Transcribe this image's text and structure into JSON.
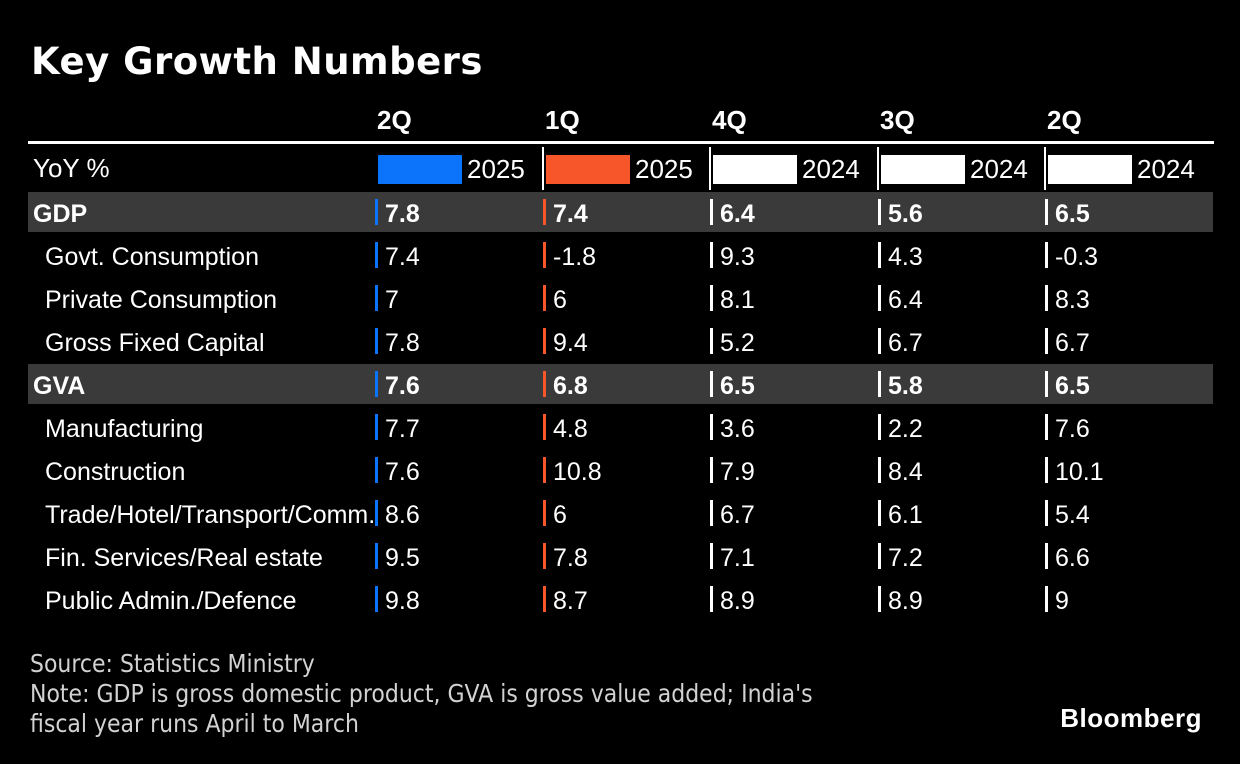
{
  "title": "Key Growth Numbers",
  "colors": {
    "background": "#000000",
    "highlight_row": "#3a3a3a",
    "series_blue": "#0c74fb",
    "series_orange": "#f6562a",
    "series_white": "#ffffff",
    "footer_text": "#d2d2d2"
  },
  "table": {
    "unit_label": "YoY %",
    "columns": [
      {
        "quarter": "2Q",
        "year": "2025",
        "swatch": "#0c74fb"
      },
      {
        "quarter": "1Q",
        "year": "2025",
        "swatch": "#f6562a"
      },
      {
        "quarter": "4Q",
        "year": "2024",
        "swatch": "#ffffff"
      },
      {
        "quarter": "3Q",
        "year": "2024",
        "swatch": "#ffffff"
      },
      {
        "quarter": "2Q",
        "year": "2024",
        "swatch": "#ffffff"
      }
    ],
    "rows": [
      {
        "label": "GDP",
        "highlight": true,
        "values": [
          "7.8",
          "7.4",
          "6.4",
          "5.6",
          "6.5"
        ]
      },
      {
        "label": "Govt. Consumption",
        "highlight": false,
        "values": [
          "7.4",
          "-1.8",
          "9.3",
          "4.3",
          "-0.3"
        ]
      },
      {
        "label": "Private Consumption",
        "highlight": false,
        "values": [
          "7",
          "6",
          "8.1",
          "6.4",
          "8.3"
        ]
      },
      {
        "label": "Gross Fixed Capital",
        "highlight": false,
        "values": [
          "7.8",
          "9.4",
          "5.2",
          "6.7",
          "6.7"
        ]
      },
      {
        "label": "GVA",
        "highlight": true,
        "values": [
          "7.6",
          "6.8",
          "6.5",
          "5.8",
          "6.5"
        ]
      },
      {
        "label": "Manufacturing",
        "highlight": false,
        "values": [
          "7.7",
          "4.8",
          "3.6",
          "2.2",
          "7.6"
        ]
      },
      {
        "label": "Construction",
        "highlight": false,
        "values": [
          "7.6",
          "10.8",
          "7.9",
          "8.4",
          "10.1"
        ]
      },
      {
        "label": "Trade/Hotel/Transport/Comm.",
        "highlight": false,
        "values": [
          "8.6",
          "6",
          "6.7",
          "6.1",
          "5.4"
        ]
      },
      {
        "label": "Fin. Services/Real estate",
        "highlight": false,
        "values": [
          "9.5",
          "7.8",
          "7.1",
          "7.2",
          "6.6"
        ]
      },
      {
        "label": "Public Admin./Defence",
        "highlight": false,
        "values": [
          "9.8",
          "8.7",
          "8.9",
          "8.9",
          "9"
        ]
      }
    ]
  },
  "footer": {
    "source": "Source: Statistics Ministry",
    "note_lines": [
      "Note: GDP is gross domestic product, GVA is gross value added; India's",
      "fiscal year runs April to March"
    ]
  },
  "logo": "Bloomberg",
  "chart_data": {
    "type": "table",
    "title": "Key Growth Numbers",
    "unit": "YoY %",
    "categories": [
      "2Q 2025",
      "1Q 2025",
      "4Q 2024",
      "3Q 2024",
      "2Q 2024"
    ],
    "category_colors": [
      "#0c74fb",
      "#f6562a",
      "#ffffff",
      "#ffffff",
      "#ffffff"
    ],
    "series": [
      {
        "name": "GDP",
        "values": [
          7.8,
          7.4,
          6.4,
          5.6,
          6.5
        ]
      },
      {
        "name": "Govt. Consumption",
        "values": [
          7.4,
          -1.8,
          9.3,
          4.3,
          -0.3
        ]
      },
      {
        "name": "Private Consumption",
        "values": [
          7,
          6,
          8.1,
          6.4,
          8.3
        ]
      },
      {
        "name": "Gross Fixed Capital",
        "values": [
          7.8,
          9.4,
          5.2,
          6.7,
          6.7
        ]
      },
      {
        "name": "GVA",
        "values": [
          7.6,
          6.8,
          6.5,
          5.8,
          6.5
        ]
      },
      {
        "name": "Manufacturing",
        "values": [
          7.7,
          4.8,
          3.6,
          2.2,
          7.6
        ]
      },
      {
        "name": "Construction",
        "values": [
          7.6,
          10.8,
          7.9,
          8.4,
          10.1
        ]
      },
      {
        "name": "Trade/Hotel/Transport/Comm.",
        "values": [
          8.6,
          6,
          6.7,
          6.1,
          5.4
        ]
      },
      {
        "name": "Fin. Services/Real estate",
        "values": [
          9.5,
          7.8,
          7.1,
          7.2,
          6.6
        ]
      },
      {
        "name": "Public Admin./Defence",
        "values": [
          9.8,
          8.7,
          8.9,
          8.9,
          9
        ]
      }
    ],
    "source": "Source: Statistics Ministry",
    "note": "Note: GDP is gross domestic product, GVA is gross value added; India's fiscal year runs April to March"
  }
}
